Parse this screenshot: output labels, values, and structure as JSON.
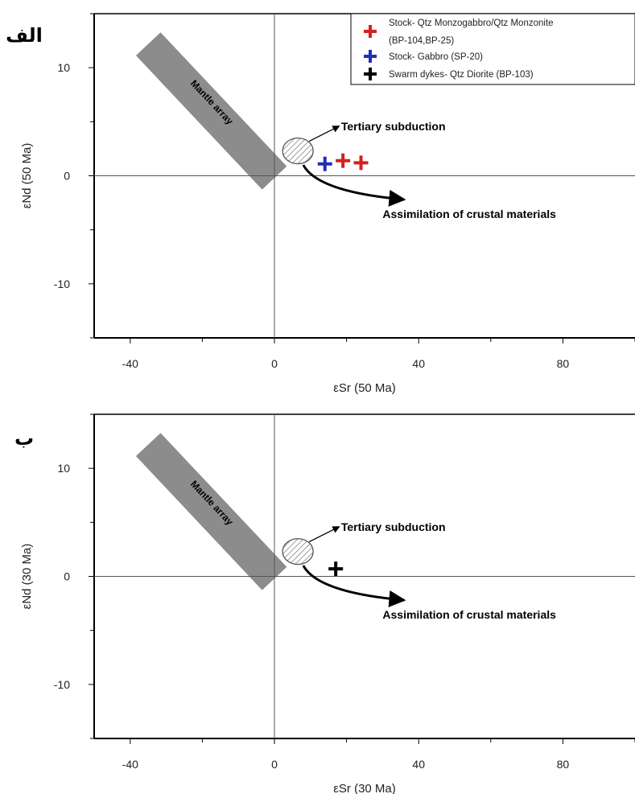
{
  "chart_data": [
    {
      "type": "scatter",
      "panel_label": "الف",
      "xlabel": "εSr (50 Ma)",
      "ylabel": "εNd (50 Ma)",
      "xlim": [
        -50,
        100
      ],
      "ylim": [
        -15,
        15
      ],
      "xticks": [
        -40,
        0,
        40,
        80
      ],
      "yticks": [
        -10,
        0,
        10
      ],
      "grid": false,
      "legend_position": "top-right",
      "legend": [
        {
          "label": "Stock- Qtz Monzogabbro/Qtz Monzonite",
          "label_line2": "(BP-104,BP-25)",
          "color": "#d62020"
        },
        {
          "label": "Stock- Gabbro (SP-20)",
          "color": "#1f2fb8"
        },
        {
          "label": "Swarm dykes- Qtz Diorite (BP-103)",
          "color": "#000000"
        }
      ],
      "series": [
        {
          "name": "Stock- Qtz Monzogabbro/Qtz Monzonite",
          "color": "#d62020",
          "points": [
            {
              "x": 19,
              "y": 1.4
            },
            {
              "x": 24,
              "y": 1.2
            }
          ]
        },
        {
          "name": "Stock- Gabbro (SP-20)",
          "color": "#1f2fb8",
          "points": [
            {
              "x": 14,
              "y": 1.1
            }
          ]
        }
      ],
      "annotations": {
        "mantle_array": "Mantle array",
        "subduction": "Tertiary subduction",
        "assimilation": "Assimilation of crustal materials"
      }
    },
    {
      "type": "scatter",
      "panel_label": "ب",
      "xlabel": "εSr (30 Ma)",
      "ylabel": "εNd (30 Ma)",
      "xlim": [
        -50,
        100
      ],
      "ylim": [
        -15,
        15
      ],
      "xticks": [
        -40,
        0,
        40,
        80
      ],
      "yticks": [
        -10,
        0,
        10
      ],
      "grid": false,
      "series": [
        {
          "name": "Swarm dykes- Qtz Diorite (BP-103)",
          "color": "#000000",
          "points": [
            {
              "x": 17,
              "y": 0.7
            }
          ]
        }
      ],
      "annotations": {
        "mantle_array": "Mantle array",
        "subduction": "Tertiary subduction",
        "assimilation": "Assimilation of crustal materials"
      }
    }
  ]
}
